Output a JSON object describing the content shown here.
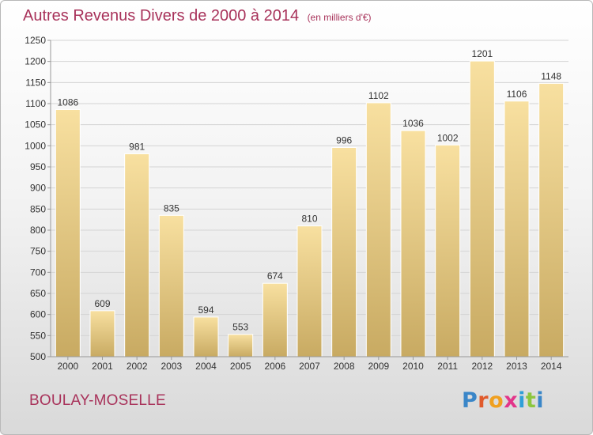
{
  "chart_data": {
    "type": "bar",
    "title": "Autres Revenus Divers de 2000 à 2014",
    "unit_note": "(en milliers d'€)",
    "categories": [
      "2000",
      "2001",
      "2002",
      "2003",
      "2004",
      "2005",
      "2006",
      "2007",
      "2008",
      "2009",
      "2010",
      "2011",
      "2012",
      "2013",
      "2014"
    ],
    "values": [
      1086,
      609,
      981,
      835,
      594,
      553,
      674,
      810,
      996,
      1102,
      1036,
      1002,
      1201,
      1106,
      1148
    ],
    "ylim": [
      500,
      1250
    ],
    "yticks": [
      500,
      550,
      600,
      650,
      700,
      750,
      800,
      850,
      900,
      950,
      1000,
      1050,
      1100,
      1150,
      1200,
      1250
    ],
    "grid": true,
    "legend": "none",
    "bar_color_top": "#f8e0a0",
    "bar_color_bottom": "#c8aa62"
  },
  "location_label": "BOULAY-MOSELLE",
  "brand_logo": "Proxiti",
  "colors": {
    "title": "#a8325a",
    "grid": "#d4d4d4",
    "axis": "#999999"
  }
}
